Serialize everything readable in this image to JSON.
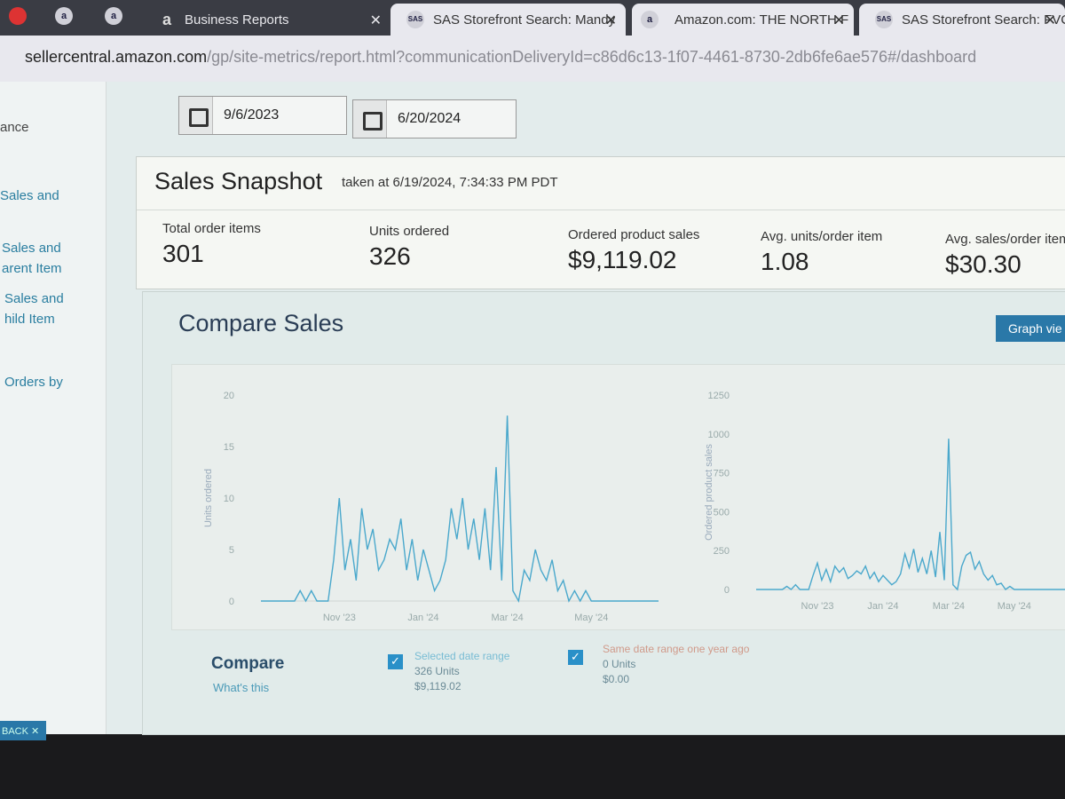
{
  "browser": {
    "tabs": [
      "Business Reports",
      "SAS Storefront Search: Mandy",
      "Amazon.com: THE NORTH F",
      "SAS Storefront Search: FVC-L"
    ],
    "url_host": "sellercentral.amazon.com",
    "url_path": "/gp/site-metrics/report.html?communicationDeliveryId=c86d6c13-1f07-4461-8730-2db6fe6ae576#/dashboard"
  },
  "sidebar": [
    [
      "ance"
    ],
    [
      "Sales and"
    ],
    [
      "Sales and",
      "arent Item"
    ],
    [
      "Sales and",
      "hild Item"
    ],
    [
      "Orders by"
    ]
  ],
  "date_range": {
    "start": "9/6/2023",
    "end": "6/20/2024"
  },
  "snapshot": {
    "title": "Sales Snapshot",
    "taken": "taken at 6/19/2024, 7:34:33 PM PDT",
    "metrics": [
      {
        "label": "Total order items",
        "value": "301"
      },
      {
        "label": "Units ordered",
        "value": "326"
      },
      {
        "label": "Ordered product sales",
        "value": "$9,119.02"
      },
      {
        "label": "Avg. units/order item",
        "value": "1.08"
      },
      {
        "label": "Avg. sales/order item",
        "value": "$30.30"
      }
    ]
  },
  "compare": {
    "title": "Compare Sales",
    "button": "Graph vie",
    "heading": "Compare",
    "help": "What's this",
    "selected": {
      "name": "Selected date range",
      "units": "326 Units",
      "sales": "$9,119.02"
    },
    "previous": {
      "name": "Same date range one year ago",
      "units": "0 Units",
      "sales": "$0.00"
    }
  },
  "feedback": "BACK",
  "chart_data": [
    {
      "type": "line",
      "y_label": "Units ordered",
      "color": "#4aa8cc",
      "categories": [
        null,
        null,
        null,
        null,
        null,
        null,
        null,
        null,
        null,
        null,
        null,
        null,
        null,
        null,
        "Nov '23",
        null,
        null,
        null,
        null,
        null,
        null,
        null,
        null,
        null,
        null,
        null,
        null,
        null,
        null,
        "Jan '24",
        null,
        null,
        null,
        null,
        null,
        null,
        null,
        null,
        null,
        null,
        null,
        null,
        null,
        null,
        "Mar '24",
        null,
        null,
        null,
        null,
        null,
        null,
        null,
        null,
        null,
        null,
        null,
        null,
        null,
        null,
        "May '24",
        null,
        null,
        null,
        null,
        null,
        null,
        null,
        null,
        null,
        null,
        null,
        null
      ],
      "values": [
        0,
        0,
        0,
        0,
        0,
        0,
        0,
        1,
        0,
        1,
        0,
        0,
        0,
        4,
        10,
        3,
        6,
        2,
        9,
        5,
        7,
        3,
        4,
        6,
        5,
        8,
        3,
        6,
        2,
        5,
        3,
        1,
        2,
        4,
        9,
        6,
        10,
        5,
        8,
        4,
        9,
        3,
        13,
        2,
        18,
        1,
        0,
        3,
        2,
        5,
        3,
        2,
        4,
        1,
        2,
        0,
        1,
        0,
        1,
        0,
        0,
        0,
        0,
        0,
        0,
        0,
        0,
        0,
        0,
        0,
        0,
        0
      ],
      "ylim": [
        0,
        20
      ],
      "yticks": [
        0,
        5,
        10,
        15,
        20
      ]
    },
    {
      "type": "line",
      "y_label": "Ordered product sales",
      "color": "#4aa8cc",
      "categories": [
        null,
        null,
        null,
        null,
        null,
        null,
        null,
        null,
        null,
        null,
        null,
        null,
        null,
        null,
        "Nov '23",
        null,
        null,
        null,
        null,
        null,
        null,
        null,
        null,
        null,
        null,
        null,
        null,
        null,
        null,
        "Jan '24",
        null,
        null,
        null,
        null,
        null,
        null,
        null,
        null,
        null,
        null,
        null,
        null,
        null,
        null,
        "Mar '24",
        null,
        null,
        null,
        null,
        null,
        null,
        null,
        null,
        null,
        null,
        null,
        null,
        null,
        null,
        "May '24",
        null,
        null,
        null,
        null,
        null,
        null,
        null,
        null,
        null,
        null,
        null,
        null
      ],
      "values": [
        0,
        0,
        0,
        0,
        0,
        0,
        0,
        20,
        0,
        30,
        0,
        0,
        0,
        90,
        170,
        60,
        130,
        50,
        150,
        110,
        140,
        70,
        90,
        120,
        100,
        150,
        70,
        110,
        50,
        90,
        60,
        30,
        50,
        100,
        230,
        140,
        260,
        110,
        200,
        100,
        250,
        80,
        370,
        60,
        970,
        30,
        0,
        150,
        220,
        240,
        130,
        180,
        100,
        60,
        90,
        30,
        40,
        0,
        20,
        0,
        0,
        0,
        0,
        0,
        0,
        0,
        0,
        0,
        0,
        0,
        0,
        0
      ],
      "ylim": [
        0,
        1250
      ],
      "yticks": [
        0,
        250,
        500,
        750,
        1000,
        1250
      ]
    }
  ]
}
